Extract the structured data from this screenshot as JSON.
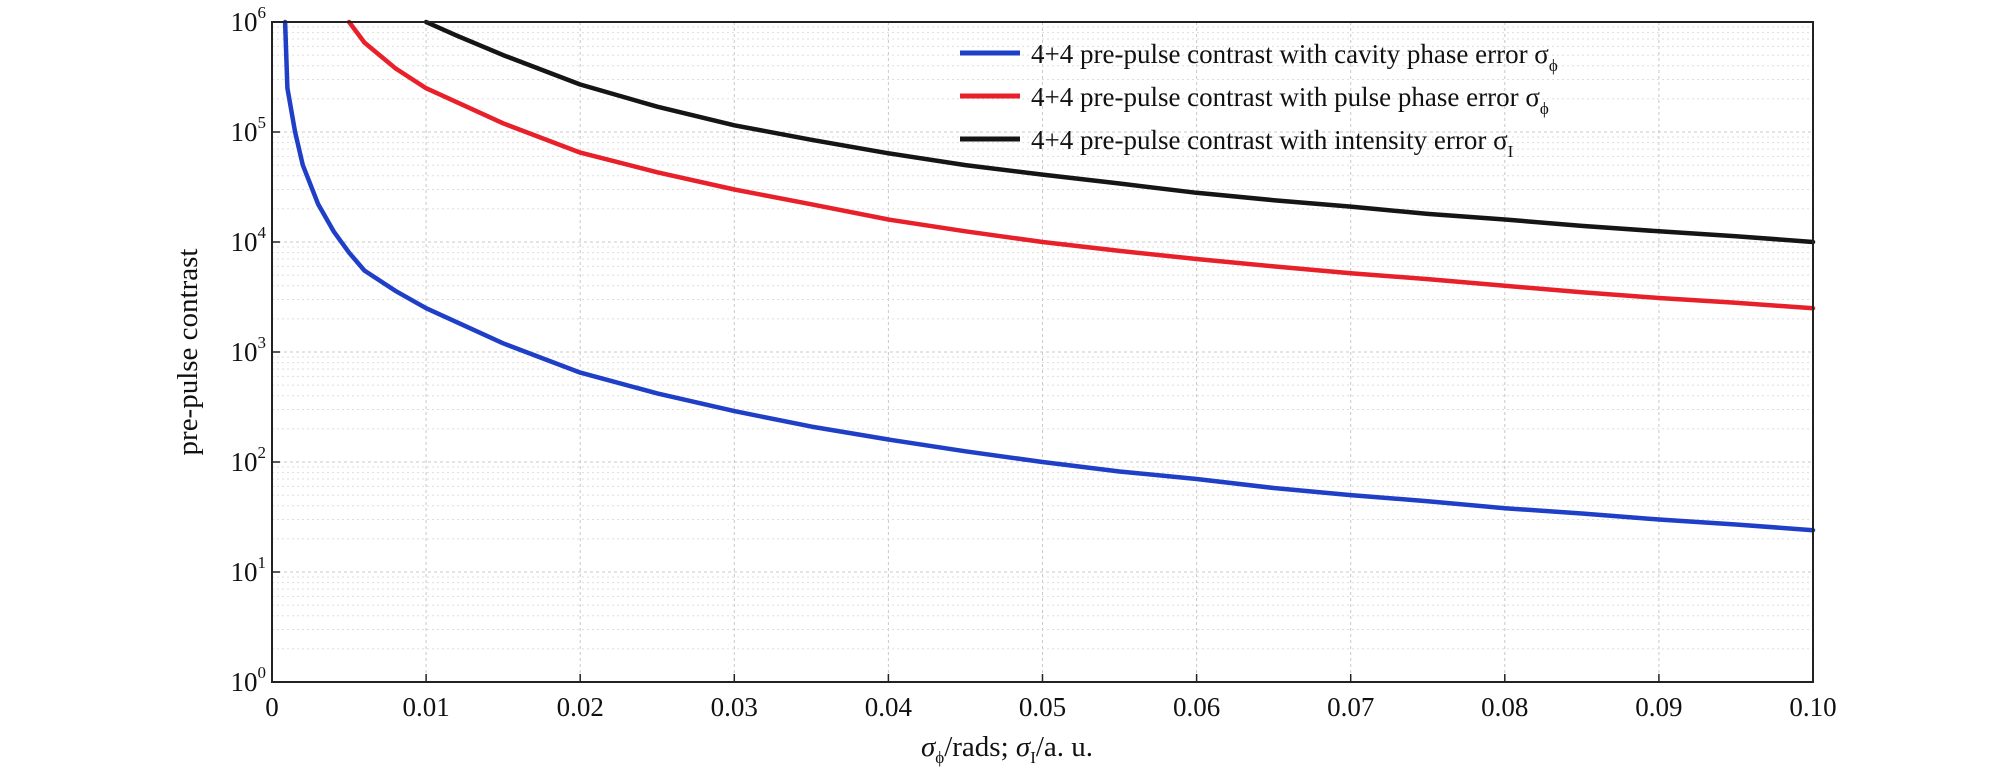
{
  "chart_data": {
    "type": "line",
    "title": "",
    "xlabel": {
      "sigma": "σ",
      "sub_phi": "ϕ",
      "mid": "/rads; ",
      "sigma2": "σ",
      "sub_I": "I",
      "tail": "/a. u."
    },
    "ylabel": "pre-pulse contrast",
    "xlim": [
      0,
      0.1
    ],
    "ylim": [
      1,
      1000000
    ],
    "yscale": "log",
    "grid": true,
    "legend_position": "top-right",
    "x_ticks": [
      "0",
      "0.01",
      "0.02",
      "0.03",
      "0.04",
      "0.05",
      "0.06",
      "0.07",
      "0.08",
      "0.09",
      "0.10"
    ],
    "y_ticks": [
      {
        "base": "10",
        "exp": "0"
      },
      {
        "base": "10",
        "exp": "1"
      },
      {
        "base": "10",
        "exp": "2"
      },
      {
        "base": "10",
        "exp": "3"
      },
      {
        "base": "10",
        "exp": "4"
      },
      {
        "base": "10",
        "exp": "5"
      },
      {
        "base": "10",
        "exp": "6"
      }
    ],
    "series": [
      {
        "name": "4+4 pre-pulse contrast with cavity phase error σ",
        "symbol_sub": "ϕ",
        "color": "#1f3fc7",
        "x": [
          0.00085,
          0.001,
          0.0015,
          0.002,
          0.003,
          0.004,
          0.005,
          0.006,
          0.008,
          0.01,
          0.015,
          0.02,
          0.025,
          0.03,
          0.035,
          0.04,
          0.045,
          0.05,
          0.055,
          0.06,
          0.065,
          0.07,
          0.075,
          0.08,
          0.085,
          0.09,
          0.095,
          0.1
        ],
        "y": [
          1000000,
          250000,
          100000,
          50000,
          22000,
          12500,
          8000,
          5500,
          3600,
          2500,
          1200,
          650,
          420,
          290,
          210,
          160,
          125,
          100,
          82,
          70,
          58,
          50,
          44,
          38,
          34,
          30,
          27,
          24
        ]
      },
      {
        "name": "4+4 pre-pulse contrast with pulse phase error σ",
        "symbol_sub": "ϕ",
        "color": "#e8202a",
        "x": [
          0.005,
          0.006,
          0.008,
          0.01,
          0.015,
          0.02,
          0.025,
          0.03,
          0.035,
          0.04,
          0.045,
          0.05,
          0.055,
          0.06,
          0.065,
          0.07,
          0.075,
          0.08,
          0.085,
          0.09,
          0.095,
          0.1
        ],
        "y": [
          1000000,
          650000,
          380000,
          250000,
          120000,
          65000,
          43000,
          30000,
          22000,
          16000,
          12500,
          10000,
          8300,
          7000,
          6000,
          5200,
          4600,
          4000,
          3500,
          3100,
          2800,
          2500
        ]
      },
      {
        "name": "4+4 pre-pulse contrast with intensity error σ",
        "symbol_sub": "I",
        "color": "#151515",
        "x": [
          0.01,
          0.012,
          0.015,
          0.02,
          0.025,
          0.03,
          0.035,
          0.04,
          0.045,
          0.05,
          0.055,
          0.06,
          0.065,
          0.07,
          0.075,
          0.08,
          0.085,
          0.09,
          0.095,
          0.1
        ],
        "y": [
          1000000,
          750000,
          500000,
          270000,
          170000,
          115000,
          85000,
          64000,
          50000,
          41000,
          34000,
          28000,
          24000,
          21000,
          18000,
          16000,
          14000,
          12500,
          11300,
          10000
        ]
      }
    ]
  }
}
